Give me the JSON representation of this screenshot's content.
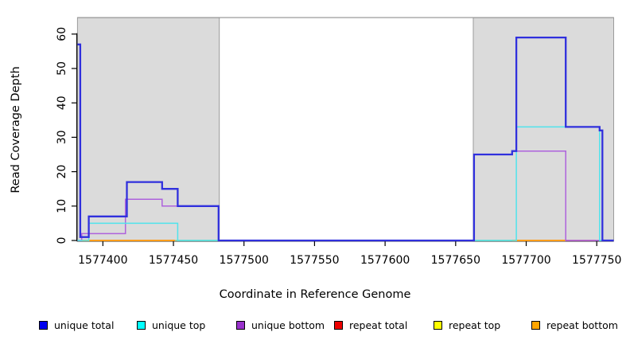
{
  "chart_data": {
    "type": "line",
    "subtype": "step-coverage",
    "title": "",
    "xlabel": "Coordinate in Reference Genome",
    "ylabel": "Read Coverage Depth",
    "xlim": [
      1577382,
      1577762
    ],
    "ylim": [
      0,
      65
    ],
    "grid": false,
    "legend_position": "bottom",
    "x_ticks": [
      1577400,
      1577450,
      1577500,
      1577550,
      1577600,
      1577650,
      1577700,
      1577750
    ],
    "x_tick_labels": [
      "1577400",
      "1577450",
      "1577500",
      "1577550",
      "1577600",
      "1577650",
      "1577700",
      "1577750"
    ],
    "y_ticks": [
      0,
      10,
      20,
      30,
      40,
      50,
      60
    ],
    "y_tick_labels": [
      "0",
      "10",
      "20",
      "30",
      "40",
      "50",
      "60"
    ],
    "repeat_regions": {
      "fill": "#dbdbdb",
      "border": "#9b9b9b",
      "top_line_color": "#8f8f8f",
      "top_value": 64.8,
      "ranges": [
        [
          1577382,
          1577482.5
        ],
        [
          1577662.5,
          1577762
        ]
      ]
    },
    "series": [
      {
        "name": "repeat top",
        "legend_color": "#ffff00",
        "line_color": "#9cd69c",
        "width": 1.8,
        "segments": [
          [
            [
              1577382,
              0
            ],
            [
              1577385,
              0
            ]
          ],
          [
            [
              1577451,
              0
            ],
            [
              1577483,
              0
            ]
          ],
          [
            [
              1577663,
              0
            ],
            [
              1577690,
              0
            ]
          ]
        ]
      },
      {
        "name": "repeat bottom",
        "legend_color": "#ffa500",
        "line_color": "#ff9c1a",
        "width": 2.0,
        "segments": [
          [
            [
              1577385,
              0
            ],
            [
              1577451,
              0
            ]
          ],
          [
            [
              1577690,
              0
            ],
            [
              1577728,
              0
            ]
          ]
        ]
      },
      {
        "name": "repeat total",
        "legend_color": "#ee0000",
        "line_color": "#e0607f",
        "width": 1.5,
        "segments": [
          [
            [
              1577728,
              0
            ],
            [
              1577749,
              0
            ]
          ]
        ]
      },
      {
        "name": "unique bottom",
        "legend_color": "#9932cc",
        "line_color": "#ae62dc",
        "width": 1.5,
        "segments": [
          [
            [
              1577382,
              0
            ],
            [
              1577385,
              2
            ],
            [
              1577416,
              12
            ],
            [
              1577442,
              10
            ],
            [
              1577482,
              0
            ],
            [
              1577663,
              25
            ],
            [
              1577690,
              26
            ],
            [
              1577728,
              0
            ],
            [
              1577762,
              0
            ]
          ]
        ]
      },
      {
        "name": "unique top",
        "legend_color": "#00ffff",
        "line_color": "#4fe3ec",
        "width": 1.5,
        "segments": [
          [
            [
              1577382,
              0
            ],
            [
              1577390,
              5
            ],
            [
              1577453,
              0
            ],
            [
              1577693,
              33
            ],
            [
              1577752,
              0
            ],
            [
              1577762,
              0
            ]
          ]
        ]
      },
      {
        "name": "unique total",
        "legend_color": "#0000ee",
        "line_color": "#3030dd",
        "width": 2.3,
        "segments": [
          [
            [
              1577382,
              57
            ],
            [
              1577384,
              1
            ],
            [
              1577390,
              7
            ],
            [
              1577417,
              17
            ],
            [
              1577442,
              15
            ],
            [
              1577453,
              10
            ],
            [
              1577482,
              0
            ],
            [
              1577663,
              25
            ],
            [
              1577690,
              26
            ],
            [
              1577693,
              59
            ],
            [
              1577728,
              33
            ],
            [
              1577752,
              32
            ],
            [
              1577754,
              0
            ],
            [
              1577762,
              0
            ]
          ]
        ]
      }
    ],
    "legend_order": [
      "unique total",
      "unique top",
      "unique bottom",
      "repeat total",
      "repeat top",
      "repeat bottom"
    ]
  }
}
